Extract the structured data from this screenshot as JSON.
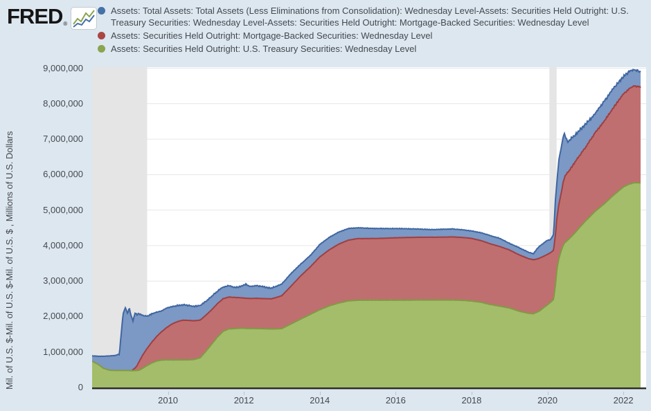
{
  "brand": {
    "logo_text": "FRED",
    "registered_mark": "®"
  },
  "legend": {
    "items": [
      {
        "label": "Assets: Total Assets: Total Assets (Less Eliminations from Consolidation): Wednesday Level-Assets: Securities Held Outright: U.S. Treasury Securities: Wednesday Level-Assets: Securities Held Outright: Mortgage-Backed Securities: Wednesday Level",
        "color": "#4572a7"
      },
      {
        "label": "Assets: Securities Held Outright: Mortgage-Backed Securities: Wednesday Level",
        "color": "#aa4643"
      },
      {
        "label": "Assets: Securities Held Outright: U.S. Treasury Securities: Wednesday Level",
        "color": "#89a54e"
      }
    ]
  },
  "y_axis": {
    "title": "Mil. of U.S. $-Mil. of U.S. $-Mil. of U.S. $ , Millions of U.S. Dollars",
    "ticks": [
      "0",
      "1,000,000",
      "2,000,000",
      "3,000,000",
      "4,000,000",
      "5,000,000",
      "6,000,000",
      "7,000,000",
      "8,000,000",
      "9,000,000"
    ]
  },
  "x_axis": {
    "ticks": [
      "2010",
      "2012",
      "2014",
      "2016",
      "2018",
      "2020",
      "2022"
    ]
  },
  "chart_data": {
    "type": "area",
    "stacking": "stacked",
    "title": "",
    "xlabel": "",
    "ylabel": "Mil. of U.S. $-Mil. of U.S. $-Mil. of U.S. $ , Millions of U.S. Dollars",
    "x_range": [
      2008.0,
      2022.6
    ],
    "y_range": [
      0,
      9030000
    ],
    "x_tick_years": [
      2010,
      2012,
      2014,
      2016,
      2018,
      2020,
      2022
    ],
    "y_tick_values": [
      0,
      1000000,
      2000000,
      3000000,
      4000000,
      5000000,
      6000000,
      7000000,
      8000000,
      9000000
    ],
    "grid": true,
    "legend_position": "top",
    "recession_bands_years": [
      [
        2008.0,
        2009.45
      ],
      [
        2020.05,
        2020.24
      ]
    ],
    "recession_band_color": "#e5e5e5",
    "gridline_color": "#e6e6e6",
    "plot_background": "#ffffff",
    "axis_line_color": "#2b2b2b",
    "series": [
      {
        "key": "treasury",
        "name": "U.S. Treasury Securities (Wednesday Level)",
        "stroke": "#7f9b44",
        "fill": "#a4bd6b"
      },
      {
        "key": "mbs",
        "name": "Mortgage-Backed Securities (Wednesday Level)",
        "stroke": "#a03f40",
        "fill": "#c06f70"
      },
      {
        "key": "other",
        "name": "Total Assets less Treasuries less MBS",
        "stroke": "#3f66a0",
        "fill": "#7c98c5"
      }
    ],
    "point_format": [
      "year",
      "treasury_mil_usd",
      "mbs_mil_usd",
      "total_assets_mil_usd"
    ],
    "points": [
      [
        2008.0,
        740000,
        0,
        890000
      ],
      [
        2008.15,
        660000,
        0,
        880000
      ],
      [
        2008.3,
        540000,
        0,
        880000
      ],
      [
        2008.45,
        490000,
        0,
        890000
      ],
      [
        2008.6,
        480000,
        0,
        900000
      ],
      [
        2008.72,
        480000,
        0,
        940000
      ],
      [
        2008.76,
        480000,
        0,
        1450000
      ],
      [
        2008.82,
        480000,
        0,
        2100000
      ],
      [
        2008.88,
        480000,
        0,
        2250000
      ],
      [
        2008.93,
        480000,
        0,
        2080000
      ],
      [
        2008.98,
        476000,
        0,
        2240000
      ],
      [
        2009.03,
        475000,
        0,
        2000000
      ],
      [
        2009.08,
        475000,
        30000,
        1880000
      ],
      [
        2009.13,
        475000,
        70000,
        2100000
      ],
      [
        2009.18,
        478000,
        130000,
        2050000
      ],
      [
        2009.24,
        490000,
        240000,
        2080000
      ],
      [
        2009.33,
        540000,
        370000,
        2030000
      ],
      [
        2009.45,
        620000,
        480000,
        2010000
      ],
      [
        2009.58,
        695000,
        590000,
        2080000
      ],
      [
        2009.7,
        745000,
        690000,
        2120000
      ],
      [
        2009.83,
        772000,
        800000,
        2160000
      ],
      [
        2009.95,
        776000,
        900000,
        2230000
      ],
      [
        2010.1,
        777000,
        1010000,
        2280000
      ],
      [
        2010.25,
        777000,
        1080000,
        2310000
      ],
      [
        2010.4,
        777000,
        1120000,
        2330000
      ],
      [
        2010.55,
        779000,
        1110000,
        2310000
      ],
      [
        2010.7,
        790000,
        1090000,
        2290000
      ],
      [
        2010.85,
        840000,
        1060000,
        2310000
      ],
      [
        2011.0,
        1020000,
        1020000,
        2430000
      ],
      [
        2011.15,
        1220000,
        970000,
        2570000
      ],
      [
        2011.3,
        1420000,
        940000,
        2710000
      ],
      [
        2011.45,
        1580000,
        920000,
        2830000
      ],
      [
        2011.6,
        1650000,
        900000,
        2870000
      ],
      [
        2011.8,
        1665000,
        870000,
        2820000
      ],
      [
        2011.95,
        1670000,
        855000,
        2870000
      ],
      [
        2012.05,
        1665000,
        850000,
        2910000
      ],
      [
        2012.15,
        1662000,
        848000,
        2850000
      ],
      [
        2012.35,
        1660000,
        852000,
        2870000
      ],
      [
        2012.55,
        1655000,
        850000,
        2830000
      ],
      [
        2012.72,
        1650000,
        848000,
        2800000
      ],
      [
        2012.88,
        1655000,
        890000,
        2860000
      ],
      [
        2013.0,
        1661000,
        927000,
        2920000
      ],
      [
        2013.25,
        1794000,
        1070000,
        3220000
      ],
      [
        2013.5,
        1930000,
        1220000,
        3480000
      ],
      [
        2013.75,
        2060000,
        1340000,
        3720000
      ],
      [
        2014.0,
        2190000,
        1490000,
        4030000
      ],
      [
        2014.25,
        2300000,
        1580000,
        4230000
      ],
      [
        2014.5,
        2380000,
        1660000,
        4380000
      ],
      [
        2014.75,
        2440000,
        1712000,
        4480000
      ],
      [
        2015.0,
        2460000,
        1737000,
        4500000
      ],
      [
        2015.5,
        2460000,
        1740000,
        4480000
      ],
      [
        2016.0,
        2461000,
        1758000,
        4480000
      ],
      [
        2016.5,
        2463000,
        1770000,
        4470000
      ],
      [
        2017.0,
        2465000,
        1770000,
        4450000
      ],
      [
        2017.5,
        2465000,
        1778000,
        4470000
      ],
      [
        2017.8,
        2454000,
        1772000,
        4440000
      ],
      [
        2018.0,
        2436000,
        1765000,
        4410000
      ],
      [
        2018.25,
        2400000,
        1740000,
        4360000
      ],
      [
        2018.5,
        2337000,
        1710000,
        4280000
      ],
      [
        2018.75,
        2290000,
        1680000,
        4200000
      ],
      [
        2019.0,
        2240000,
        1635000,
        4060000
      ],
      [
        2019.25,
        2150000,
        1590000,
        3940000
      ],
      [
        2019.5,
        2090000,
        1540000,
        3810000
      ],
      [
        2019.63,
        2080000,
        1520000,
        3770000
      ],
      [
        2019.72,
        2120000,
        1500000,
        3900000
      ],
      [
        2019.78,
        2150000,
        1490000,
        3970000
      ],
      [
        2019.9,
        2250000,
        1450000,
        4070000
      ],
      [
        2020.0,
        2330000,
        1420000,
        4150000
      ],
      [
        2020.08,
        2400000,
        1400000,
        4170000
      ],
      [
        2020.16,
        2480000,
        1385000,
        4310000
      ],
      [
        2020.21,
        2880000,
        1430000,
        5300000
      ],
      [
        2020.25,
        3340000,
        1460000,
        5810000
      ],
      [
        2020.3,
        3630000,
        1530000,
        6420000
      ],
      [
        2020.36,
        3850000,
        1620000,
        6750000
      ],
      [
        2020.42,
        4020000,
        1790000,
        7100000
      ],
      [
        2020.45,
        4070000,
        1850000,
        7165000
      ],
      [
        2020.49,
        4110000,
        1900000,
        7000000
      ],
      [
        2020.54,
        4160000,
        1910000,
        6920000
      ],
      [
        2020.62,
        4240000,
        1950000,
        7010000
      ],
      [
        2020.75,
        4390000,
        2000000,
        7150000
      ],
      [
        2020.88,
        4550000,
        2040000,
        7290000
      ],
      [
        2021.0,
        4690000,
        2070000,
        7410000
      ],
      [
        2021.25,
        4960000,
        2210000,
        7720000
      ],
      [
        2021.5,
        5180000,
        2330000,
        8070000
      ],
      [
        2021.75,
        5430000,
        2480000,
        8450000
      ],
      [
        2022.0,
        5650000,
        2620000,
        8760000
      ],
      [
        2022.15,
        5730000,
        2690000,
        8900000
      ],
      [
        2022.28,
        5770000,
        2727000,
        8960000
      ],
      [
        2022.38,
        5770000,
        2720000,
        8930000
      ],
      [
        2022.45,
        5765000,
        2710000,
        8900000
      ]
    ],
    "noise_amplitude_mil": {
      "treasury": 2500,
      "mbs_top_pre2020": 6000,
      "mbs_top_post2020": 26000,
      "total_early": 20000,
      "total_mid": 10000,
      "total_post2020": 40000
    }
  }
}
